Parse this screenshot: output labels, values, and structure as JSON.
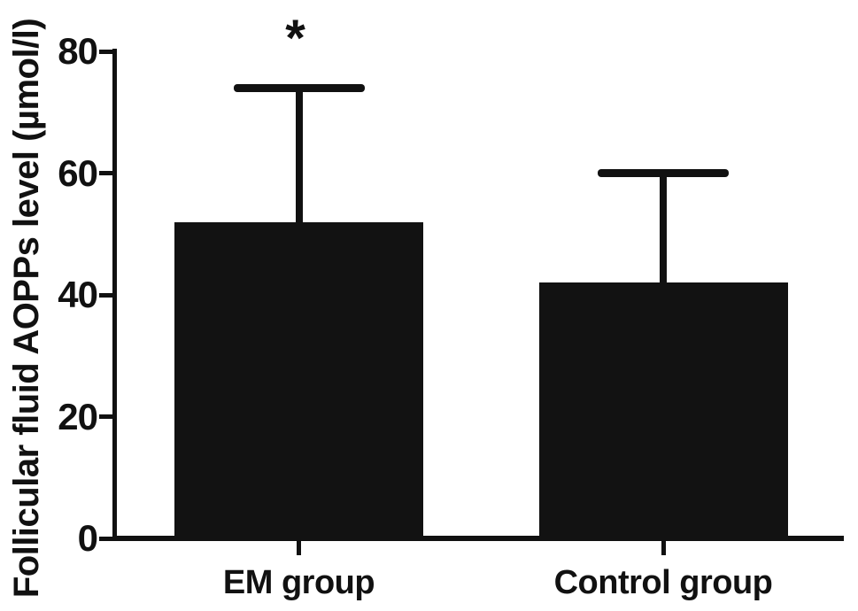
{
  "chart_data": {
    "type": "bar",
    "title": "",
    "xlabel": "",
    "ylabel": "Follicular fluid AOPPs level (µmol/l)",
    "categories": [
      "EM group",
      "Control group"
    ],
    "values": [
      52,
      42
    ],
    "error_upper": [
      22,
      18
    ],
    "error_bar_tops": [
      74,
      60
    ],
    "ylim": [
      0,
      80
    ],
    "yticks": [
      0,
      20,
      40,
      60,
      80
    ],
    "annotations": [
      {
        "text": "*",
        "category": "EM group",
        "meaning": "significance-marker"
      }
    ],
    "legend": "none",
    "grid": "off",
    "bar_color": "#121212",
    "axis_color": "#111111",
    "background_color": "#ffffff"
  }
}
